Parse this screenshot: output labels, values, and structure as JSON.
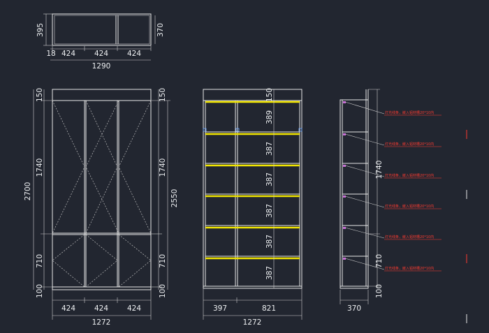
{
  "colors": {
    "background": "#222630",
    "lines": "#e8e8e8",
    "shelf_light": "#f2e600",
    "annotation": "#ff3b30"
  },
  "plan_view": {
    "depth_outer": "395",
    "depth_inner": "370",
    "panel": "18",
    "bays": [
      "424",
      "424",
      "424"
    ],
    "total": "1290"
  },
  "front_view": {
    "left_dims": [
      "150",
      "1740",
      "710",
      "100"
    ],
    "overall_height": "2700",
    "right_dims": [
      "150",
      "1740",
      "710",
      "100"
    ],
    "inner_height": "2550",
    "bays": [
      "424",
      "424",
      "424"
    ],
    "total": "1272"
  },
  "interior_view": {
    "shelf_dims": [
      "150",
      "389",
      "387",
      "387",
      "387",
      "387",
      "387"
    ],
    "widths": [
      "397",
      "821"
    ],
    "total": "1272"
  },
  "side_view": {
    "right_dims": [
      "1740",
      "710",
      "100"
    ],
    "depth": "370",
    "annotations": [
      "灯光线条，嵌入铝材槽20*10内",
      "灯光线条，嵌入铝材槽20*10内",
      "灯光线条，嵌入铝材槽20*10内",
      "灯光线条，嵌入铝材槽20*10内",
      "灯光线条，嵌入铝材槽20*10内",
      "灯光线条，嵌入铝材槽20*10内"
    ]
  }
}
